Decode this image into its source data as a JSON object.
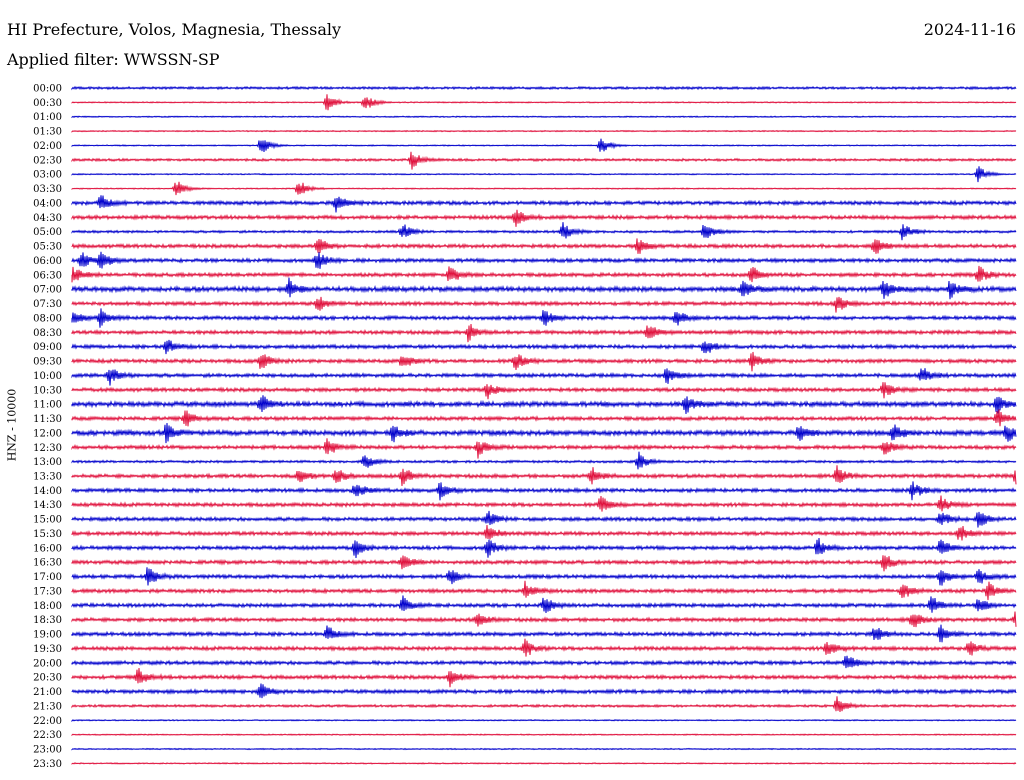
{
  "header": {
    "station": "HI Prefecture, Volos, Magnesia, Thessaly",
    "date": "2024-11-16",
    "filter": "Applied filter: WWSSN-SP"
  },
  "colors": {
    "even_row": "#0000cc",
    "odd_row": "#e0103c"
  },
  "chart_data": {
    "type": "line",
    "title": "HI Prefecture, Volos, Magnesia, Thessaly",
    "ylabel": "HNZ - 10000",
    "xlabel": "",
    "time_labels": [
      "00:00",
      "00:30",
      "01:00",
      "01:30",
      "02:00",
      "02:30",
      "03:00",
      "03:30",
      "04:00",
      "04:30",
      "05:00",
      "05:30",
      "06:00",
      "06:30",
      "07:00",
      "07:30",
      "08:00",
      "08:30",
      "09:00",
      "09:30",
      "10:00",
      "10:30",
      "11:00",
      "11:30",
      "12:00",
      "12:30",
      "13:00",
      "13:30",
      "14:00",
      "14:30",
      "15:00",
      "15:30",
      "16:00",
      "16:30",
      "17:00",
      "17:30",
      "18:00",
      "18:30",
      "19:00",
      "19:30",
      "20:00",
      "20:30",
      "21:00",
      "21:30",
      "22:00",
      "22:30",
      "23:00",
      "23:30"
    ],
    "row_minutes": 30,
    "grid": false,
    "series_colors": [
      "blue",
      "red"
    ],
    "noise_level": [
      2,
      1,
      1,
      1,
      0,
      2,
      1,
      1,
      3,
      3,
      2,
      3,
      3,
      3,
      4,
      3,
      3,
      3,
      3,
      3,
      3,
      3,
      4,
      3,
      4,
      3,
      2,
      3,
      3,
      3,
      3,
      3,
      3,
      3,
      3,
      3,
      3,
      3,
      3,
      3,
      3,
      3,
      3,
      2,
      0,
      1,
      1,
      0
    ],
    "events": [
      {
        "row": 1,
        "t": [
          0.27,
          0.31
        ]
      },
      {
        "row": 4,
        "t": [
          0.2,
          0.56
        ]
      },
      {
        "row": 5,
        "t": [
          0.36
        ]
      },
      {
        "row": 6,
        "t": [
          0.96
        ]
      },
      {
        "row": 7,
        "t": [
          0.11,
          0.24
        ]
      },
      {
        "row": 8,
        "t": [
          0.03,
          0.28
        ]
      },
      {
        "row": 9,
        "t": [
          0.47
        ]
      },
      {
        "row": 10,
        "t": [
          0.35,
          0.52,
          0.67,
          0.88
        ]
      },
      {
        "row": 11,
        "t": [
          0.26,
          0.6,
          0.85
        ]
      },
      {
        "row": 12,
        "t": [
          0.01,
          0.03,
          0.26
        ]
      },
      {
        "row": 13,
        "t": [
          0.0,
          0.4,
          0.72,
          0.96
        ]
      },
      {
        "row": 14,
        "t": [
          0.23,
          0.71,
          0.86,
          0.93
        ]
      },
      {
        "row": 15,
        "t": [
          0.26,
          0.81
        ]
      },
      {
        "row": 16,
        "t": [
          0.0,
          0.03,
          0.5,
          0.64
        ]
      },
      {
        "row": 17,
        "t": [
          0.42,
          0.61
        ]
      },
      {
        "row": 18,
        "t": [
          0.1,
          0.67
        ]
      },
      {
        "row": 19,
        "t": [
          0.2,
          0.35,
          0.47,
          0.72
        ]
      },
      {
        "row": 20,
        "t": [
          0.04,
          0.63,
          0.9
        ]
      },
      {
        "row": 21,
        "t": [
          0.44,
          0.86
        ]
      },
      {
        "row": 22,
        "t": [
          0.2,
          0.65,
          0.98
        ]
      },
      {
        "row": 23,
        "t": [
          0.12,
          0.98
        ]
      },
      {
        "row": 24,
        "t": [
          0.1,
          0.34,
          0.77,
          0.87,
          0.99
        ]
      },
      {
        "row": 25,
        "t": [
          0.27,
          0.43,
          0.86
        ]
      },
      {
        "row": 26,
        "t": [
          0.31,
          0.6
        ]
      },
      {
        "row": 27,
        "t": [
          0.24,
          0.28,
          0.35,
          0.55,
          0.81,
          1.0
        ]
      },
      {
        "row": 28,
        "t": [
          0.3,
          0.39,
          0.89
        ]
      },
      {
        "row": 29,
        "t": [
          0.56,
          0.92
        ]
      },
      {
        "row": 30,
        "t": [
          0.44,
          0.92,
          0.96
        ]
      },
      {
        "row": 31,
        "t": [
          0.44,
          0.94
        ]
      },
      {
        "row": 32,
        "t": [
          0.3,
          0.44,
          0.79,
          0.92
        ]
      },
      {
        "row": 33,
        "t": [
          0.35,
          0.86
        ]
      },
      {
        "row": 34,
        "t": [
          0.08,
          0.4,
          0.92,
          0.96
        ]
      },
      {
        "row": 35,
        "t": [
          0.48,
          0.88,
          0.97
        ]
      },
      {
        "row": 36,
        "t": [
          0.35,
          0.5,
          0.91,
          0.96
        ]
      },
      {
        "row": 37,
        "t": [
          0.43,
          0.89,
          1.0
        ]
      },
      {
        "row": 38,
        "t": [
          0.27,
          0.85,
          0.92
        ]
      },
      {
        "row": 39,
        "t": [
          0.48,
          0.8,
          0.95
        ]
      },
      {
        "row": 40,
        "t": [
          0.82
        ]
      },
      {
        "row": 41,
        "t": [
          0.07,
          0.4
        ]
      },
      {
        "row": 42,
        "t": [
          0.2
        ]
      },
      {
        "row": 43,
        "t": [
          0.81
        ]
      }
    ]
  }
}
